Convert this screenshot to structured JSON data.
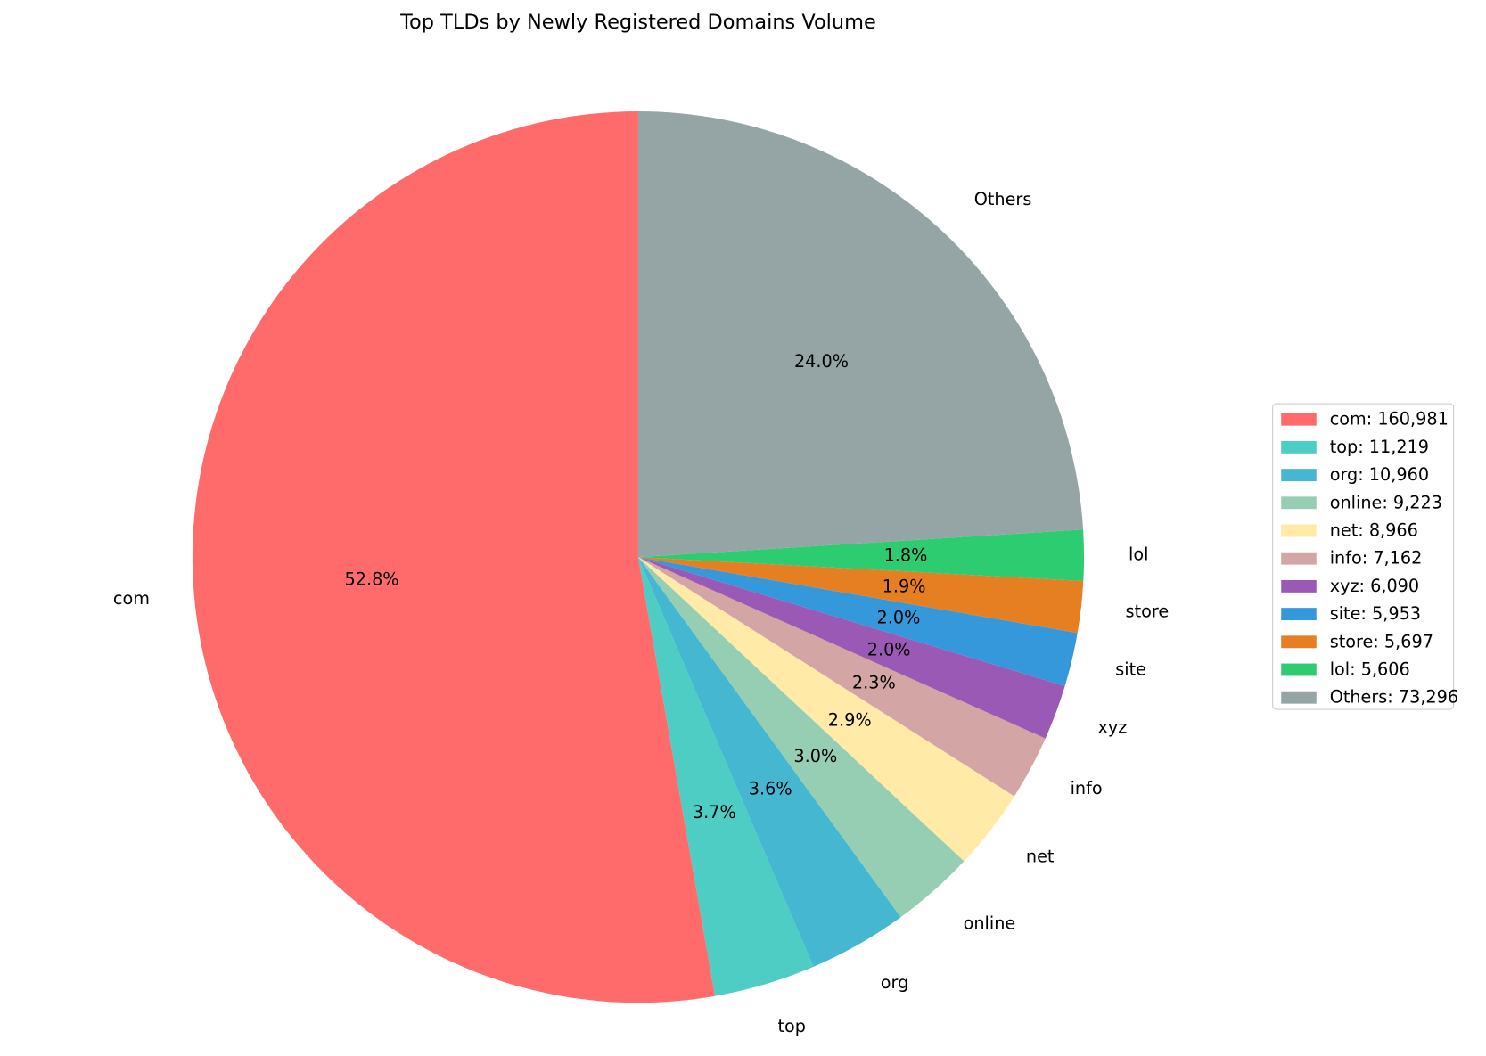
{
  "chart_data": {
    "type": "pie",
    "title": "Top TLDs by Newly Registered Domains Volume",
    "categories": [
      "com",
      "top",
      "org",
      "online",
      "net",
      "info",
      "xyz",
      "site",
      "store",
      "lol",
      "Others"
    ],
    "values": [
      160981,
      11219,
      10960,
      9223,
      8966,
      7162,
      6090,
      5953,
      5697,
      5606,
      73296
    ],
    "value_labels": [
      "52.8%",
      "3.7%",
      "3.6%",
      "3.0%",
      "2.9%",
      "2.3%",
      "2.0%",
      "2.0%",
      "1.9%",
      "1.8%",
      "24.0%"
    ],
    "legend_labels": [
      "com: 160,981",
      "top: 11,219",
      "org: 10,960",
      "online: 9,223",
      "net: 8,966",
      "info: 7,162",
      "xyz: 6,090",
      "site: 5,953",
      "store: 5,697",
      "lol: 5,606",
      "Others: 73,296"
    ],
    "colors": [
      "#ff6b6b",
      "#4ecdc4",
      "#45b7d1",
      "#96ceb4",
      "#ffeaa7",
      "#d4a5a5",
      "#9b59b6",
      "#3498db",
      "#e67e22",
      "#2ecc71",
      "#95a5a6"
    ],
    "legend": "right"
  }
}
